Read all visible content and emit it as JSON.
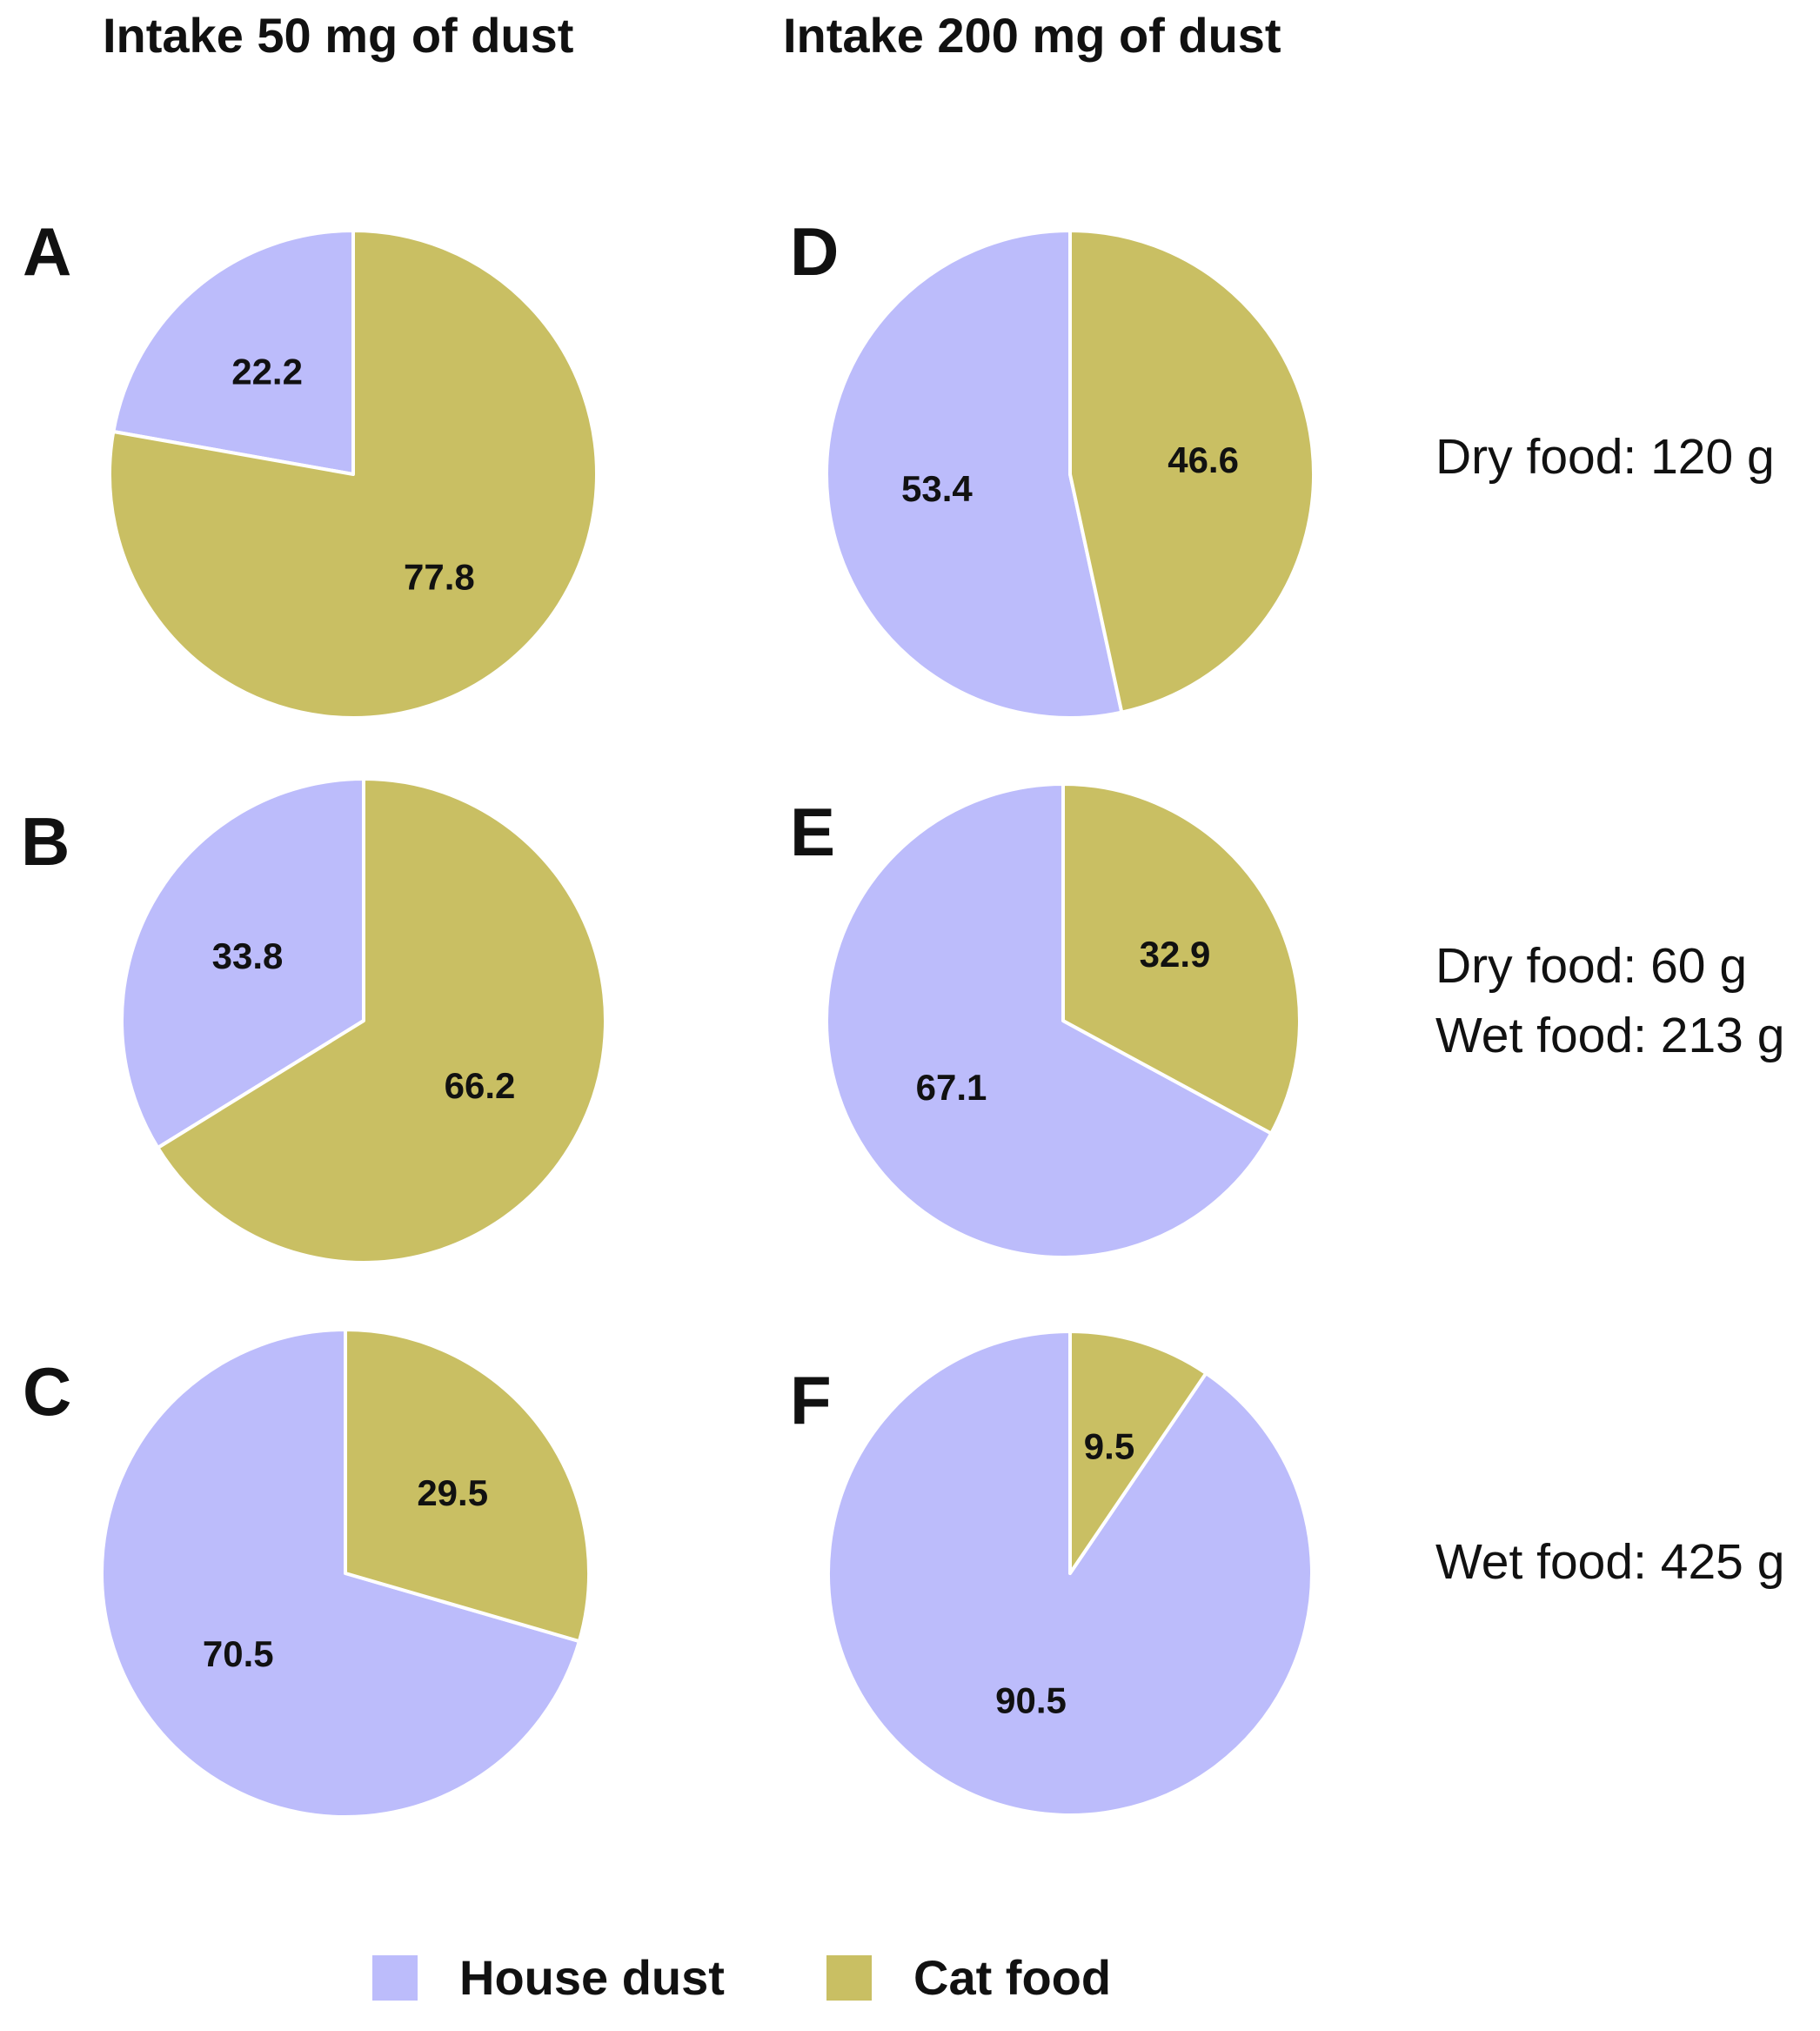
{
  "headers": {
    "left": "Intake 50 mg of dust",
    "right": "Intake 200 mg of dust"
  },
  "colors": {
    "house_dust": "#bcbcfb",
    "cat_food": "#c9bf63"
  },
  "legend": {
    "house_dust": "House dust",
    "cat_food": "Cat food"
  },
  "side_notes": {
    "row1": [
      "Dry food: 120 g"
    ],
    "row2": [
      "Dry food: 60 g",
      "Wet food: 213 g"
    ],
    "row3": [
      "Wet food: 425 g"
    ]
  },
  "chart_data": [
    {
      "type": "pie",
      "panel": "A",
      "intake": "Intake 50 mg of dust",
      "diet": "Dry food: 120 g",
      "labels": [
        "House dust",
        "Cat food"
      ],
      "values": [
        22.2,
        77.8
      ],
      "value_labels": [
        "22.2",
        "77.8"
      ]
    },
    {
      "type": "pie",
      "panel": "B",
      "intake": "Intake 50 mg of dust",
      "diet": "Dry food: 60 g, Wet food: 213 g",
      "labels": [
        "House dust",
        "Cat food"
      ],
      "values": [
        33.8,
        66.2
      ],
      "value_labels": [
        "33.8",
        "66.2"
      ]
    },
    {
      "type": "pie",
      "panel": "C",
      "intake": "Intake 50 mg of dust",
      "diet": "Wet food: 425 g",
      "labels": [
        "House dust",
        "Cat food"
      ],
      "values": [
        70.5,
        29.5
      ],
      "value_labels": [
        "70.5",
        "29.5"
      ]
    },
    {
      "type": "pie",
      "panel": "D",
      "intake": "Intake 200 mg of dust",
      "diet": "Dry food: 120 g",
      "labels": [
        "House dust",
        "Cat food"
      ],
      "values": [
        53.4,
        46.6
      ],
      "value_labels": [
        "53.4",
        "46.6"
      ]
    },
    {
      "type": "pie",
      "panel": "E",
      "intake": "Intake 200 mg of dust",
      "diet": "Dry food: 60 g, Wet food: 213 g",
      "labels": [
        "House dust",
        "Cat food"
      ],
      "values": [
        67.1,
        32.9
      ],
      "value_labels": [
        "67.1",
        "32.9"
      ]
    },
    {
      "type": "pie",
      "panel": "F",
      "intake": "Intake 200 mg of dust",
      "diet": "Wet food: 425 g",
      "labels": [
        "House dust",
        "Cat food"
      ],
      "values": [
        90.5,
        9.5
      ],
      "value_labels": [
        "90.5",
        "9.5"
      ]
    }
  ]
}
